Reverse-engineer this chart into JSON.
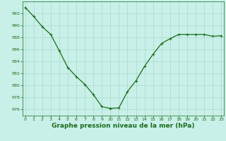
{
  "x": [
    0,
    1,
    2,
    3,
    4,
    5,
    6,
    7,
    8,
    9,
    10,
    11,
    12,
    13,
    14,
    15,
    16,
    17,
    18,
    19,
    20,
    21,
    22,
    23
  ],
  "y": [
    993.0,
    991.5,
    989.8,
    988.5,
    985.8,
    983.0,
    981.5,
    980.2,
    978.5,
    976.5,
    976.2,
    976.3,
    979.0,
    980.8,
    983.2,
    985.2,
    987.0,
    987.8,
    988.5,
    988.5,
    988.5,
    988.5,
    988.2,
    988.3
  ],
  "line_color": "#1a6b1a",
  "marker": "+",
  "marker_size": 3,
  "marker_linewidth": 0.7,
  "bg_color": "#c8f0e8",
  "grid_color": "#a8d8cc",
  "ylim": [
    975,
    994
  ],
  "yticks": [
    976,
    978,
    980,
    982,
    984,
    986,
    988,
    990,
    992
  ],
  "xticks": [
    0,
    1,
    2,
    3,
    4,
    5,
    6,
    7,
    8,
    9,
    10,
    11,
    12,
    13,
    14,
    15,
    16,
    17,
    18,
    19,
    20,
    21,
    22,
    23
  ],
  "tick_label_color": "#1a6b1a",
  "tick_label_size": 4.5,
  "xlabel": "Graphe pression niveau de la mer (hPa)",
  "xlabel_fontsize": 6.5,
  "xlabel_color": "#1a6b1a",
  "line_width": 0.9
}
